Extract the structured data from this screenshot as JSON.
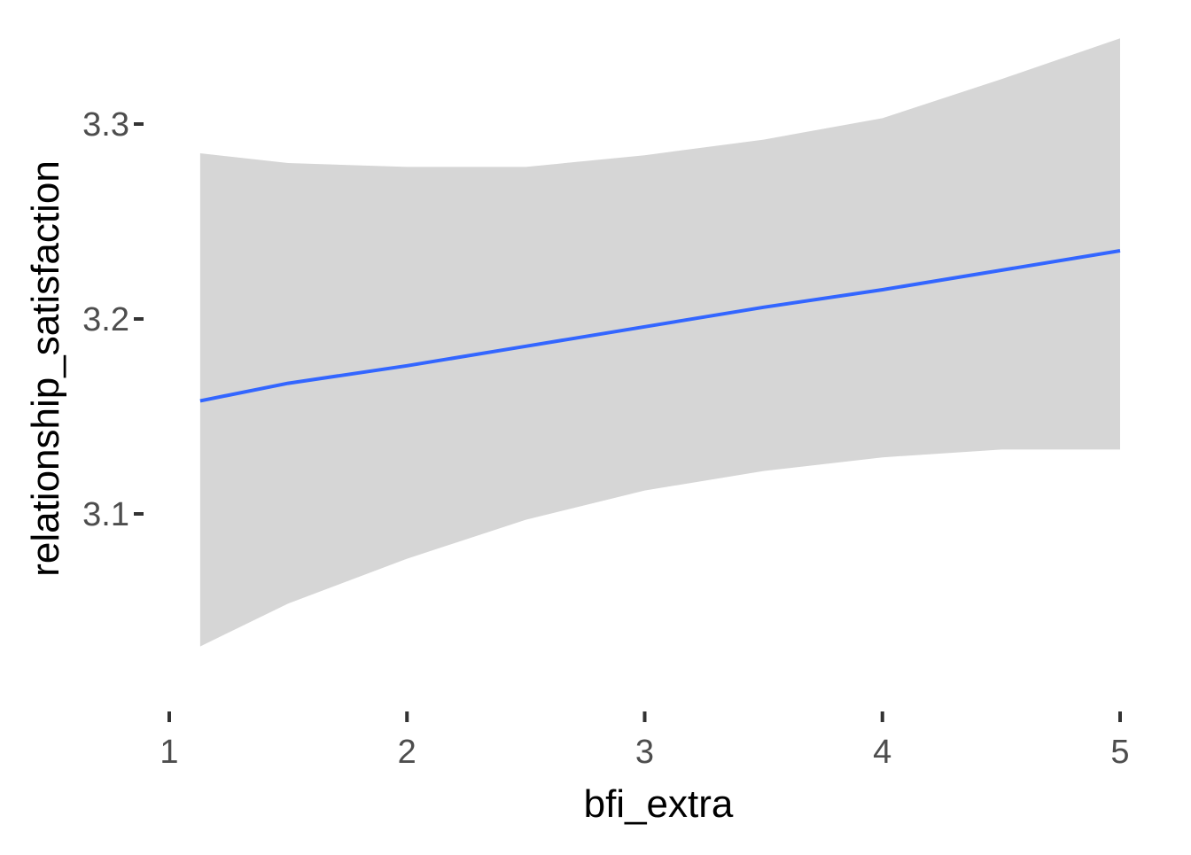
{
  "chart_data": {
    "type": "line",
    "xlabel": "bfi_extra",
    "ylabel": "relationship_satisfaction",
    "xlim": [
      1,
      5
    ],
    "ylim": [
      3.0,
      3.35
    ],
    "x_ticks": [
      1,
      2,
      3,
      4,
      5
    ],
    "x_tick_labels": [
      "1",
      "2",
      "3",
      "4",
      "5"
    ],
    "y_ticks": [
      3.1,
      3.2,
      3.3
    ],
    "y_tick_labels": [
      "3.1",
      "3.2",
      "3.3"
    ],
    "grid": false,
    "colors": {
      "line": "#3366FF",
      "ribbon": "#D6D6D6"
    },
    "series": [
      {
        "x": [
          1.13,
          1.5,
          2.0,
          2.5,
          3.0,
          3.5,
          4.0,
          4.5,
          5.0
        ],
        "y": [
          3.158,
          3.167,
          3.176,
          3.186,
          3.196,
          3.206,
          3.215,
          3.225,
          3.235
        ],
        "lower": [
          3.032,
          3.054,
          3.077,
          3.097,
          3.112,
          3.122,
          3.129,
          3.133,
          3.133
        ],
        "upper": [
          3.285,
          3.28,
          3.278,
          3.278,
          3.284,
          3.292,
          3.303,
          3.323,
          3.344
        ]
      }
    ]
  }
}
